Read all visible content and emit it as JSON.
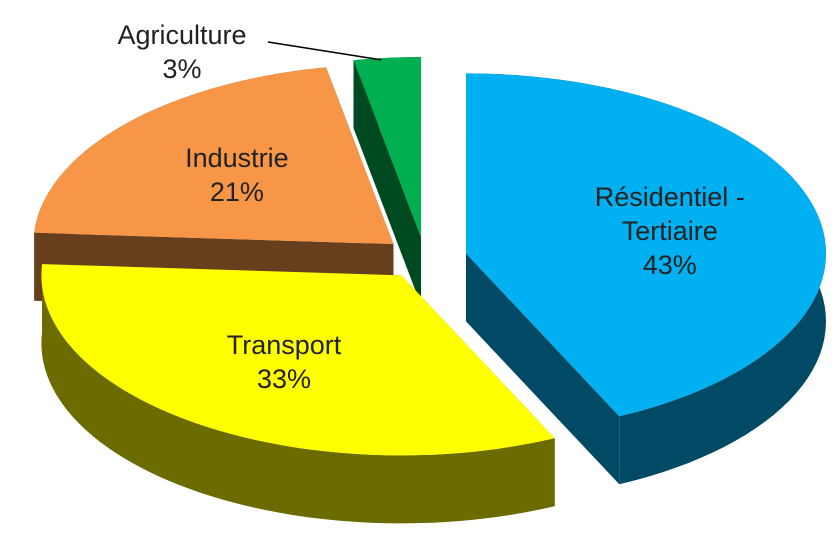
{
  "chart_data": {
    "type": "pie",
    "categories": [
      "Résidentiel - Tertiaire",
      "Transport",
      "Industrie",
      "Agriculture"
    ],
    "values": [
      43,
      33,
      21,
      3
    ],
    "value_labels": [
      "43%",
      "33%",
      "21%",
      "3%"
    ],
    "colors": [
      "#00b0f0",
      "#ffff00",
      "#f79646",
      "#00b050"
    ]
  }
}
